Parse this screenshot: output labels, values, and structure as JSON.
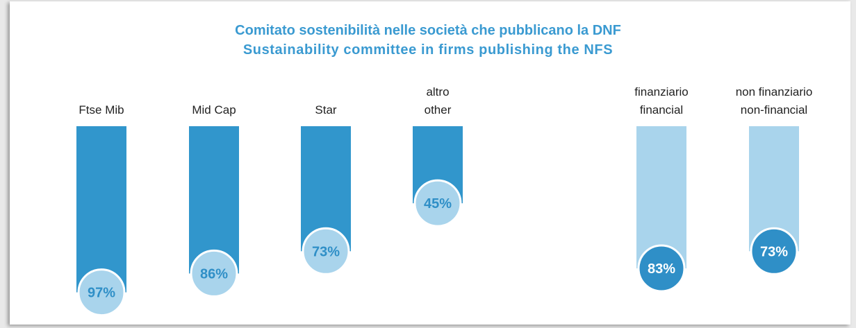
{
  "chart_data": {
    "type": "bar",
    "title": "Comitato sostenibilità nelle società che pubblicano la DNF",
    "subtitle": "Sustainability committee in firms publishing the NFS",
    "categories": [
      [
        "Ftse Mib"
      ],
      [
        "Mid Cap"
      ],
      [
        "Star"
      ],
      [
        "altro",
        "other"
      ],
      [
        "finanziario",
        "financial"
      ],
      [
        "non finanziario",
        "non-financial"
      ]
    ],
    "values": [
      97,
      86,
      73,
      45,
      83,
      73
    ],
    "value_labels": [
      "97%",
      "86%",
      "73%",
      "45%",
      "83%",
      "73%"
    ],
    "groups": [
      "market",
      "market",
      "market",
      "market",
      "sector",
      "sector"
    ],
    "ylim": [
      0,
      100
    ],
    "grid": false,
    "colors": {
      "market_bar": "#3196cc",
      "market_bubble": "#a9d4ec",
      "market_text": "#2f8fc7",
      "sector_bar": "#a9d4ec",
      "sector_bubble": "#2f8fc7",
      "sector_text": "#ffffff"
    }
  }
}
